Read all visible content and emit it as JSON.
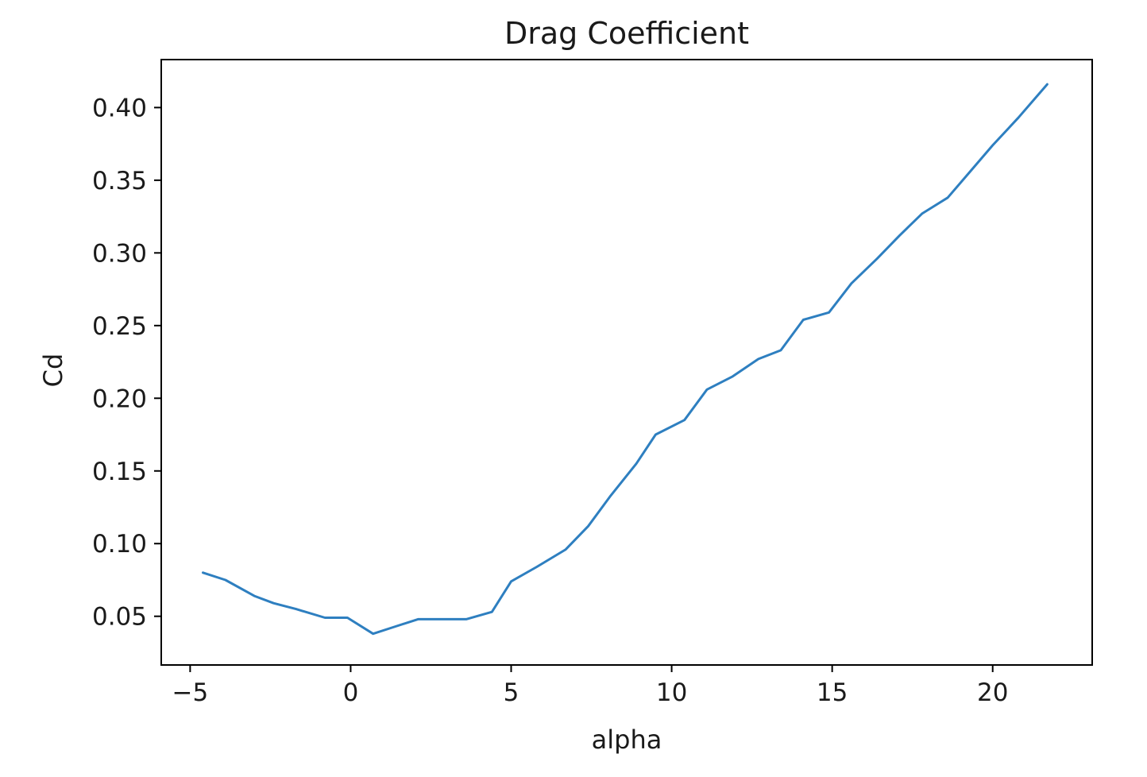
{
  "chart_data": {
    "type": "line",
    "title": "Drag Coefficient",
    "xlabel": "alpha",
    "ylabel": "Cd",
    "xlim": [
      -5.9,
      23.1
    ],
    "ylim": [
      0.0165,
      0.433
    ],
    "grid": false,
    "x_ticks": [
      -5,
      0,
      5,
      10,
      15,
      20
    ],
    "x_tick_labels": [
      "−5",
      "0",
      "5",
      "10",
      "15",
      "20"
    ],
    "y_ticks": [
      0.05,
      0.1,
      0.15,
      0.2,
      0.25,
      0.3,
      0.35,
      0.4
    ],
    "y_tick_labels": [
      "0.05",
      "0.10",
      "0.15",
      "0.20",
      "0.25",
      "0.30",
      "0.35",
      "0.40"
    ],
    "series": [
      {
        "color": "#2e7fc0",
        "x": [
          -4.6,
          -3.9,
          -3.0,
          -2.4,
          -1.7,
          -0.8,
          -0.1,
          0.7,
          1.4,
          2.1,
          2.8,
          3.6,
          4.4,
          5.0,
          5.8,
          6.7,
          7.4,
          8.1,
          8.9,
          9.5,
          10.4,
          11.1,
          11.9,
          12.7,
          13.4,
          14.1,
          14.9,
          15.6,
          16.4,
          17.1,
          17.8,
          18.6,
          19.3,
          20.0,
          20.8,
          21.7
        ],
        "y": [
          0.08,
          0.075,
          0.064,
          0.059,
          0.055,
          0.049,
          0.049,
          0.038,
          0.043,
          0.048,
          0.048,
          0.048,
          0.053,
          0.074,
          0.084,
          0.096,
          0.112,
          0.133,
          0.155,
          0.175,
          0.185,
          0.206,
          0.215,
          0.227,
          0.233,
          0.254,
          0.259,
          0.279,
          0.296,
          0.312,
          0.327,
          0.338,
          0.356,
          0.374,
          0.393,
          0.416
        ]
      }
    ]
  }
}
